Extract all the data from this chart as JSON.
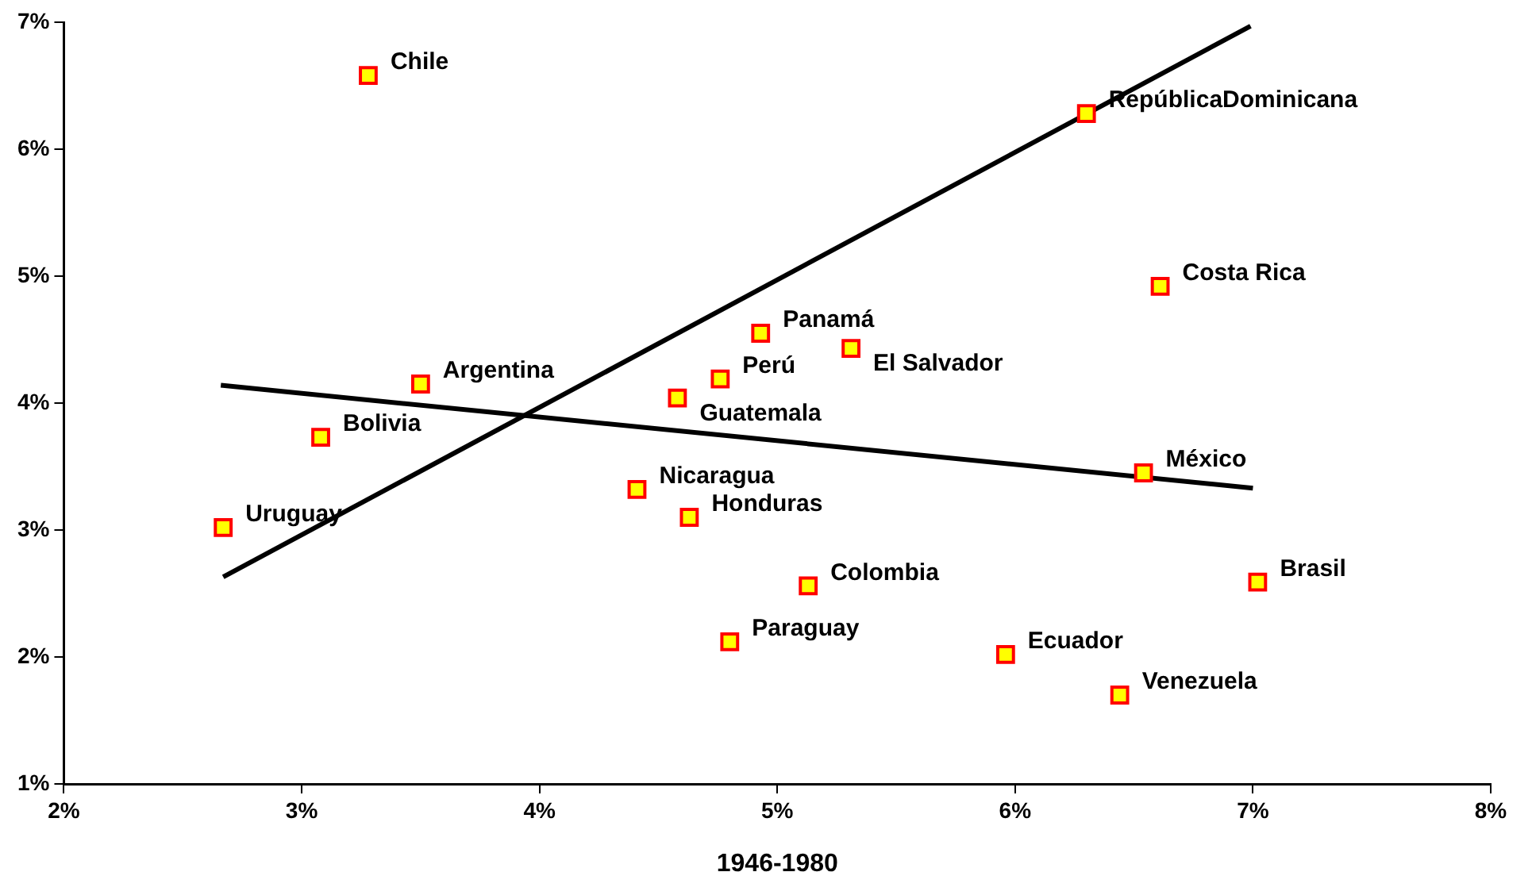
{
  "chart_data": {
    "type": "scatter",
    "xlabel": "1946-1980",
    "xlim": [
      2,
      8
    ],
    "ylim": [
      1,
      7
    ],
    "xticks": [
      {
        "value": 2,
        "label": "2%"
      },
      {
        "value": 3,
        "label": "3%"
      },
      {
        "value": 4,
        "label": "4%"
      },
      {
        "value": 5,
        "label": "5%"
      },
      {
        "value": 6,
        "label": "6%"
      },
      {
        "value": 7,
        "label": "7%"
      },
      {
        "value": 8,
        "label": "8%"
      }
    ],
    "yticks": [
      {
        "value": 1,
        "label": "1%"
      },
      {
        "value": 2,
        "label": "2%"
      },
      {
        "value": 3,
        "label": "3%"
      },
      {
        "value": 4,
        "label": "4%"
      },
      {
        "value": 5,
        "label": "5%"
      },
      {
        "value": 6,
        "label": "6%"
      },
      {
        "value": 7,
        "label": "7%"
      }
    ],
    "grid": false,
    "legend": false,
    "series": [
      {
        "type": "scatter",
        "color": "#ffff00",
        "marker": "square",
        "x": [
          3.28,
          6.3,
          6.61,
          4.93,
          5.31,
          4.76,
          3.5,
          4.58,
          3.08,
          6.54,
          4.41,
          4.63,
          2.67,
          5.13,
          7.02,
          4.8,
          5.96,
          6.44
        ],
        "values": [
          6.58,
          6.28,
          4.92,
          4.55,
          4.43,
          4.19,
          4.15,
          4.04,
          3.73,
          3.45,
          3.32,
          3.1,
          3.02,
          2.56,
          2.59,
          2.12,
          2.02,
          1.7
        ]
      },
      {
        "type": "line",
        "color": "#000000",
        "marker": "none",
        "x": [
          2.67,
          6.99
        ],
        "values": [
          2.63,
          6.97
        ]
      },
      {
        "type": "line",
        "color": "#000000",
        "marker": "none",
        "x": [
          2.66,
          7.0
        ],
        "values": [
          4.14,
          3.33
        ]
      }
    ],
    "annotations": [
      {
        "text": "Chile",
        "x": 3.28,
        "y": 6.58
      },
      {
        "text": "RepúblicaDominicana",
        "x": 6.3,
        "y": 6.28
      },
      {
        "text": "Costa Rica",
        "x": 6.61,
        "y": 4.92
      },
      {
        "text": "Panamá",
        "x": 4.93,
        "y": 4.55
      },
      {
        "text": "El Salvador",
        "x": 5.31,
        "y": 4.43
      },
      {
        "text": "Perú",
        "x": 4.76,
        "y": 4.19
      },
      {
        "text": "Argentina",
        "x": 3.5,
        "y": 4.15
      },
      {
        "text": "Guatemala",
        "x": 4.58,
        "y": 4.04
      },
      {
        "text": "Bolivia",
        "x": 3.08,
        "y": 3.73
      },
      {
        "text": "México",
        "x": 6.54,
        "y": 3.45
      },
      {
        "text": "Nicaragua",
        "x": 4.41,
        "y": 3.32
      },
      {
        "text": "Honduras",
        "x": 4.63,
        "y": 3.1
      },
      {
        "text": "Uruguay",
        "x": 2.67,
        "y": 3.02
      },
      {
        "text": "Colombia",
        "x": 5.13,
        "y": 2.56
      },
      {
        "text": "Brasil",
        "x": 7.02,
        "y": 2.59
      },
      {
        "text": "Paraguay",
        "x": 4.8,
        "y": 2.12
      },
      {
        "text": "Ecuador",
        "x": 5.96,
        "y": 2.02
      },
      {
        "text": "Venezuela",
        "x": 6.44,
        "y": 1.7
      }
    ]
  }
}
